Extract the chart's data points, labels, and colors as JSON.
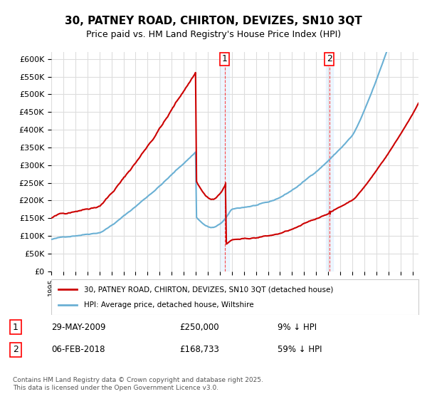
{
  "title": "30, PATNEY ROAD, CHIRTON, DEVIZES, SN10 3QT",
  "subtitle": "Price paid vs. HM Land Registry's House Price Index (HPI)",
  "ylabel_ticks": [
    "£0",
    "£50K",
    "£100K",
    "£150K",
    "£200K",
    "£250K",
    "£300K",
    "£350K",
    "£400K",
    "£450K",
    "£500K",
    "£550K",
    "£600K"
  ],
  "ytick_values": [
    0,
    50000,
    100000,
    150000,
    200000,
    250000,
    300000,
    350000,
    400000,
    450000,
    500000,
    550000,
    600000
  ],
  "hpi_color": "#6ab0d4",
  "price_color": "#cc0000",
  "marker1_date": "29-MAY-2009",
  "marker1_price": 250000,
  "marker1_label": "9% ↓ HPI",
  "marker2_date": "06-FEB-2018",
  "marker2_price": 168733,
  "marker2_label": "59% ↓ HPI",
  "legend_property": "30, PATNEY ROAD, CHIRTON, DEVIZES, SN10 3QT (detached house)",
  "legend_hpi": "HPI: Average price, detached house, Wiltshire",
  "copyright": "Contains HM Land Registry data © Crown copyright and database right 2025.\nThis data is licensed under the Open Government Licence v3.0.",
  "background_color": "#ffffff",
  "plot_bg_color": "#ffffff",
  "grid_color": "#dddddd",
  "shading_color": "#ddeeff"
}
